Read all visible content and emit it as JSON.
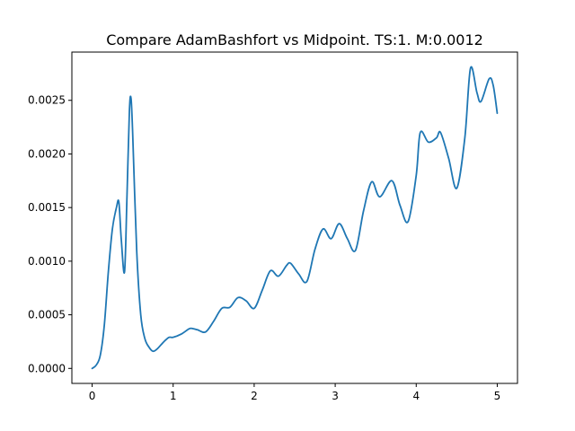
{
  "chart_data": {
    "type": "line",
    "title": "Compare AdamBashfort vs Midpoint. TS:1. M:0.0012",
    "xlabel": "",
    "ylabel": "",
    "xlim": [
      -0.25,
      5.25
    ],
    "ylim": [
      -0.00014,
      0.00295
    ],
    "xticks": [
      0,
      1,
      2,
      3,
      4,
      5
    ],
    "xtick_labels": [
      "0",
      "1",
      "2",
      "3",
      "4",
      "5"
    ],
    "yticks": [
      0.0,
      0.0005,
      0.001,
      0.0015,
      0.002,
      0.0025
    ],
    "ytick_labels": [
      "0.0000",
      "0.0005",
      "0.0010",
      "0.0015",
      "0.0020",
      "0.0025"
    ],
    "grid": false,
    "legend": "none",
    "series": [
      {
        "color": "#1f77b4",
        "x": [
          0.0,
          0.05,
          0.1,
          0.15,
          0.2,
          0.25,
          0.3,
          0.33,
          0.36,
          0.4,
          0.43,
          0.46,
          0.48,
          0.5,
          0.55,
          0.6,
          0.65,
          0.7,
          0.75,
          0.8,
          0.85,
          0.9,
          0.95,
          1.0,
          1.1,
          1.2,
          1.25,
          1.3,
          1.4,
          1.5,
          1.6,
          1.7,
          1.8,
          1.9,
          2.0,
          2.1,
          2.2,
          2.3,
          2.4,
          2.45,
          2.55,
          2.65,
          2.75,
          2.85,
          2.95,
          3.05,
          3.15,
          3.25,
          3.35,
          3.45,
          3.55,
          3.7,
          3.8,
          3.9,
          4.0,
          4.05,
          4.15,
          4.25,
          4.3,
          4.4,
          4.5,
          4.6,
          4.67,
          4.75,
          4.8,
          4.9,
          4.95,
          5.0
        ],
        "y": [
          0.0,
          3e-05,
          0.00012,
          0.0004,
          0.0009,
          0.0013,
          0.0015,
          0.00155,
          0.0012,
          0.0009,
          0.0016,
          0.0024,
          0.00252,
          0.0022,
          0.0011,
          0.0005,
          0.00028,
          0.0002,
          0.00016,
          0.00018,
          0.00022,
          0.00026,
          0.00029,
          0.00029,
          0.00032,
          0.00037,
          0.00037,
          0.00036,
          0.00034,
          0.00044,
          0.00056,
          0.00057,
          0.00066,
          0.00063,
          0.00056,
          0.00073,
          0.00091,
          0.00086,
          0.00096,
          0.00098,
          0.00088,
          0.00081,
          0.00111,
          0.0013,
          0.00121,
          0.00135,
          0.00121,
          0.0011,
          0.00147,
          0.00174,
          0.0016,
          0.00175,
          0.00152,
          0.00137,
          0.0018,
          0.0022,
          0.00211,
          0.00215,
          0.0022,
          0.00196,
          0.00168,
          0.00215,
          0.0028,
          0.00257,
          0.00249,
          0.0027,
          0.00264,
          0.00238
        ]
      }
    ]
  }
}
